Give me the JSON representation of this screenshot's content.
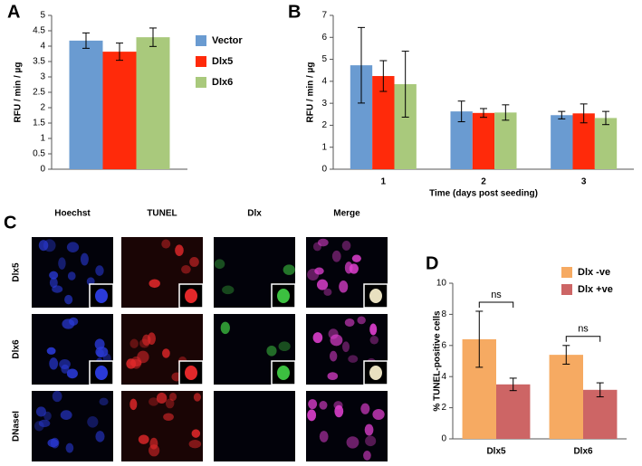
{
  "chart_data": [
    {
      "type": "bar",
      "panel": "A",
      "ylabel": "RFU / min / µg",
      "categories": [
        null
      ],
      "series": [
        {
          "name": "Vector",
          "color": "#6a9bd1",
          "values": [
            4.18
          ],
          "errors": [
            0.25
          ]
        },
        {
          "name": "Dlx5",
          "color": "#ff2a0a",
          "values": [
            3.82
          ],
          "errors": [
            0.28
          ]
        },
        {
          "name": "Dlx6",
          "color": "#a9c97c",
          "values": [
            4.29
          ],
          "errors": [
            0.3
          ]
        }
      ],
      "ylim": [
        0,
        5
      ],
      "yticks": [
        0,
        0.5,
        1,
        1.5,
        2,
        2.5,
        3,
        3.5,
        4,
        4.5,
        5
      ],
      "grid": false,
      "legend": "right"
    },
    {
      "type": "bar",
      "panel": "B",
      "ylabel": "RFU / min / µg",
      "xlabel": "Time (days post seeding)",
      "categories": [
        "1",
        "2",
        "3"
      ],
      "series": [
        {
          "color": "#6a9bd1",
          "values": [
            4.73,
            2.63,
            2.46
          ],
          "errors": [
            1.72,
            0.47,
            0.17
          ]
        },
        {
          "color": "#ff2a0a",
          "values": [
            4.24,
            2.56,
            2.54
          ],
          "errors": [
            0.7,
            0.2,
            0.43
          ]
        },
        {
          "color": "#a9c97c",
          "values": [
            3.87,
            2.58,
            2.33
          ],
          "errors": [
            1.5,
            0.35,
            0.3
          ]
        }
      ],
      "ylim": [
        0,
        7
      ],
      "yticks": [
        0,
        1,
        2,
        3,
        4,
        5,
        6,
        7
      ],
      "grid": false
    },
    {
      "type": "bar",
      "panel": "D",
      "ylabel": "% TUNEL-positive cells",
      "categories": [
        "Dlx5",
        "Dlx6"
      ],
      "series": [
        {
          "name": "Dlx -ve",
          "color": "#f6aa62",
          "values": [
            6.4,
            5.4
          ],
          "errors": [
            1.8,
            0.6
          ]
        },
        {
          "name": "Dlx +ve",
          "color": "#cd6565",
          "values": [
            3.5,
            3.15
          ],
          "errors": [
            0.4,
            0.45
          ]
        }
      ],
      "annotations": [
        "ns",
        "ns"
      ],
      "ylim": [
        0,
        10
      ],
      "yticks": [
        0,
        2,
        4,
        6,
        8,
        10
      ],
      "grid": false,
      "legend": "upper right"
    }
  ],
  "image_panel": {
    "panel": "C",
    "columns": [
      "Hoechst",
      "TUNEL",
      "Dlx",
      "Merge"
    ],
    "rows": [
      "Dlx5",
      "Dlx6",
      "DNaseI"
    ]
  }
}
